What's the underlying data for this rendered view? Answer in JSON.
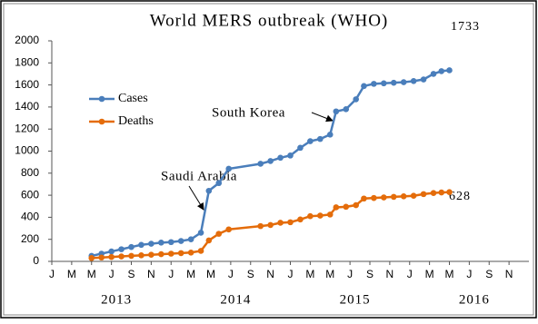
{
  "chart_data": {
    "type": "line",
    "title": "World  MERS outbreak (WHO)",
    "x": [
      4,
      5,
      6,
      7,
      8,
      9,
      10,
      11,
      12,
      13,
      14,
      15,
      15.8,
      16.8,
      17.8,
      21,
      22,
      23,
      24,
      25,
      26,
      27,
      28,
      28.6,
      29.6,
      30.6,
      31.4,
      32.4,
      33.4,
      34.4,
      35.4,
      36.4,
      37.4,
      38.4,
      39.2,
      40
    ],
    "series": [
      {
        "name": "Cases",
        "color": "#4a7ebb",
        "values": [
          50,
          70,
          90,
          110,
          130,
          150,
          160,
          170,
          175,
          185,
          200,
          260,
          640,
          710,
          840,
          885,
          910,
          940,
          960,
          1030,
          1090,
          1110,
          1150,
          1360,
          1380,
          1470,
          1590,
          1610,
          1615,
          1620,
          1625,
          1635,
          1650,
          1700,
          1725,
          1733
        ]
      },
      {
        "name": "Deaths",
        "color": "#e46c0a",
        "values": [
          30,
          35,
          40,
          45,
          50,
          55,
          60,
          65,
          70,
          75,
          80,
          95,
          190,
          250,
          290,
          320,
          330,
          350,
          355,
          380,
          410,
          415,
          425,
          490,
          495,
          510,
          570,
          575,
          580,
          585,
          590,
          595,
          610,
          620,
          625,
          628
        ]
      }
    ],
    "xlim": [
      0,
      48
    ],
    "xticks": [
      {
        "value": 0,
        "label": "J"
      },
      {
        "value": 2,
        "label": "M"
      },
      {
        "value": 4,
        "label": "M"
      },
      {
        "value": 6,
        "label": "J"
      },
      {
        "value": 8,
        "label": "S"
      },
      {
        "value": 10,
        "label": "N"
      },
      {
        "value": 12,
        "label": "J"
      },
      {
        "value": 14,
        "label": "M"
      },
      {
        "value": 16,
        "label": "M"
      },
      {
        "value": 18,
        "label": "J"
      },
      {
        "value": 20,
        "label": "S"
      },
      {
        "value": 22,
        "label": "N"
      },
      {
        "value": 24,
        "label": "J"
      },
      {
        "value": 26,
        "label": "M"
      },
      {
        "value": 28,
        "label": "M"
      },
      {
        "value": 30,
        "label": "J"
      },
      {
        "value": 32,
        "label": "S"
      },
      {
        "value": 34,
        "label": "N"
      },
      {
        "value": 36,
        "label": "J"
      },
      {
        "value": 38,
        "label": "M"
      },
      {
        "value": 40,
        "label": "M"
      },
      {
        "value": 42,
        "label": "J"
      },
      {
        "value": 44,
        "label": "S"
      },
      {
        "value": 46,
        "label": "N"
      }
    ],
    "year_labels": [
      {
        "value": 6.5,
        "label": "2013"
      },
      {
        "value": 18.5,
        "label": "2014"
      },
      {
        "value": 30.5,
        "label": "2015"
      },
      {
        "value": 42.5,
        "label": "2016"
      }
    ],
    "ylim": [
      0,
      2000
    ],
    "yticks": [
      0,
      200,
      400,
      600,
      800,
      1000,
      1200,
      1400,
      1600,
      1800,
      2000
    ],
    "legend": "upper-left",
    "annotations": [
      "Saudi Arabia",
      "South Korea",
      "1733",
      "628"
    ]
  }
}
